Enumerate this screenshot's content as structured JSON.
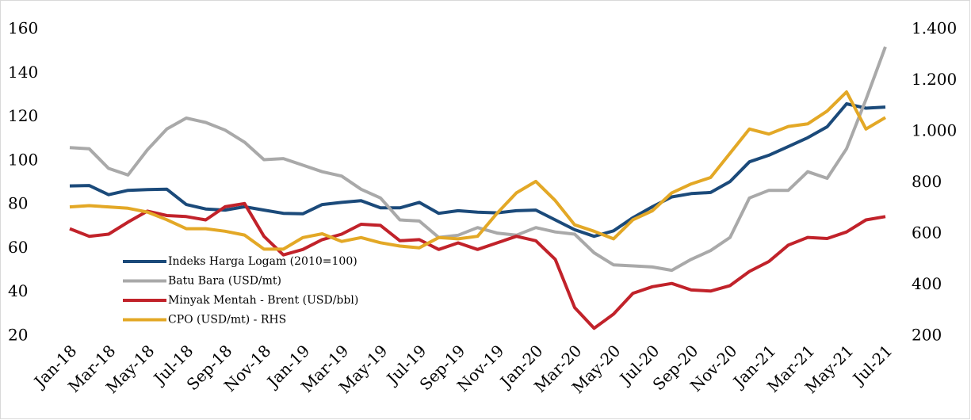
{
  "chart_data": {
    "type": "line",
    "categories": [
      "Jan-18",
      null,
      "Mar-18",
      null,
      "May-18",
      null,
      "Jul-18",
      null,
      "Sep-18",
      null,
      "Nov-18",
      null,
      "Jan-19",
      null,
      "Mar-19",
      null,
      "May-19",
      null,
      "Jul-19",
      null,
      "Sep-19",
      null,
      "Nov-19",
      null,
      "Jan-20",
      null,
      "Mar-20",
      null,
      "May-20",
      null,
      "Jul-20",
      null,
      "Sep-20",
      null,
      "Nov-20",
      null,
      "Jan-21",
      null,
      "Mar-21",
      null,
      "May-21",
      null,
      "Jul-21"
    ],
    "series": [
      {
        "name": "Indeks Harga Logam (2010=100)",
        "color": "#1b4a7a",
        "values": [
          88.5,
          88.7,
          84.5,
          86.5,
          86.8,
          87,
          80,
          78,
          77.5,
          79,
          77.5,
          76,
          75.8,
          80,
          81,
          81.8,
          78.5,
          78.5,
          81,
          76,
          77.2,
          76.5,
          76.2,
          77.2,
          77.5,
          73,
          68.5,
          65.5,
          68,
          74,
          79,
          83.5,
          85,
          85.5,
          90.5,
          99.5,
          102.5,
          106.5,
          110.5,
          115.5,
          126,
          124,
          124.5
        ]
      },
      {
        "name": "Batu Bara (USD/mt)",
        "color": "#a9a9a9",
        "values": [
          106,
          105.5,
          96.5,
          93.5,
          105,
          114.5,
          119.5,
          117.5,
          114,
          108.5,
          100.5,
          101,
          98,
          95,
          93,
          87,
          83,
          73,
          72.5,
          65,
          66,
          69.5,
          67,
          66,
          69.5,
          67.5,
          66.5,
          58,
          52.5,
          52,
          51.5,
          50,
          55,
          59,
          65,
          83,
          86.5,
          86.5,
          95,
          92,
          105.5,
          128,
          152
        ]
      },
      {
        "name": "Minyak Mentah - Brent (USD/bbl)",
        "color": "#c1222a",
        "values": [
          69,
          65.5,
          66.5,
          72,
          77,
          75,
          74.5,
          73,
          79,
          80.5,
          65.5,
          57,
          59.5,
          64,
          66.5,
          71,
          70.5,
          63.5,
          64,
          59.5,
          62.5,
          59.5,
          62.5,
          65.5,
          63.5,
          55,
          33,
          23.5,
          30,
          39.5,
          42.5,
          44,
          41,
          40.5,
          43,
          49.5,
          54,
          61.5,
          65,
          64.5,
          67.5,
          73,
          74.5
        ]
      },
      {
        "name": "CPO (USD/mt) - RHS",
        "color": "#e3a826",
        "axis": "y2",
        "values": [
          705,
          710,
          705,
          700,
          685,
          655,
          620,
          620,
          610,
          595,
          540,
          540,
          585,
          600,
          570,
          585,
          565,
          552,
          545,
          585,
          580,
          590,
          680,
          760,
          805,
          730,
          635,
          610,
          580,
          655,
          690,
          760,
          795,
          820,
          915,
          1010,
          990,
          1020,
          1030,
          1080,
          1155,
          1010,
          1055
        ]
      }
    ],
    "ylim": [
      20,
      160
    ],
    "yticks": [
      20,
      40,
      60,
      80,
      100,
      120,
      140,
      160
    ],
    "y2lim": [
      200,
      1400
    ],
    "y2ticks": [
      200,
      400,
      600,
      800,
      {
        "value": 1000,
        "label": "1.000"
      },
      {
        "value": 1200,
        "label": "1.200"
      },
      {
        "value": 1400,
        "label": "1.400"
      }
    ],
    "grid": false,
    "legend": "lower left"
  }
}
